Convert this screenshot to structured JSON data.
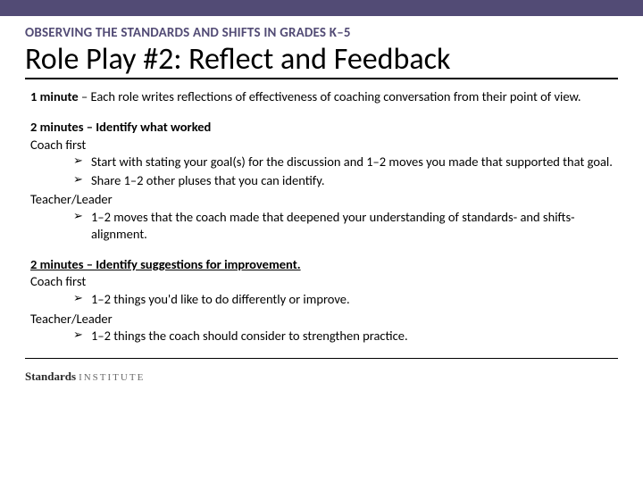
{
  "colors": {
    "accent_bar": "#524b75",
    "eyebrow_text": "#524b75",
    "body_text": "#000000",
    "background": "#ffffff",
    "rule": "#000000"
  },
  "typography": {
    "eyebrow_fontsize_pt": 11,
    "title_fontsize_pt": 26,
    "body_fontsize_pt": 11,
    "font_family": "Calibri"
  },
  "header": {
    "eyebrow": "OBSERVING THE STANDARDS AND SHIFTS IN GRADES K–5",
    "title": "Role Play #2: Reflect and Feedback"
  },
  "sections": [
    {
      "heading_bold": "1 minute",
      "heading_rest": " – Each role writes reflections of effectiveness of coaching conversation from their point of view.",
      "heading_underline": false,
      "groups": []
    },
    {
      "heading_bold": "2 minutes – Identify what worked",
      "heading_rest": "",
      "heading_underline": false,
      "groups": [
        {
          "role": "Coach first",
          "bullets": [
            "Start with stating your goal(s) for the discussion and 1–2 moves you made that supported that goal.",
            "Share 1–2 other pluses that you can identify."
          ]
        },
        {
          "role": "Teacher/Leader",
          "bullets": [
            "1–2 moves that the coach made that deepened your understanding of standards- and shifts-alignment."
          ]
        }
      ]
    },
    {
      "heading_bold": "2 minutes – Identify suggestions for improvement.",
      "heading_rest": "",
      "heading_underline": true,
      "groups": [
        {
          "role": "Coach first",
          "bullets": [
            "1–2 things you'd like to do differently or improve."
          ]
        },
        {
          "role": "Teacher/Leader",
          "bullets": [
            "1–2 things the coach should consider to strengthen practice."
          ]
        }
      ]
    }
  ],
  "footer": {
    "brand_strong": "Standards",
    "brand_light": "INSTITUTE"
  }
}
